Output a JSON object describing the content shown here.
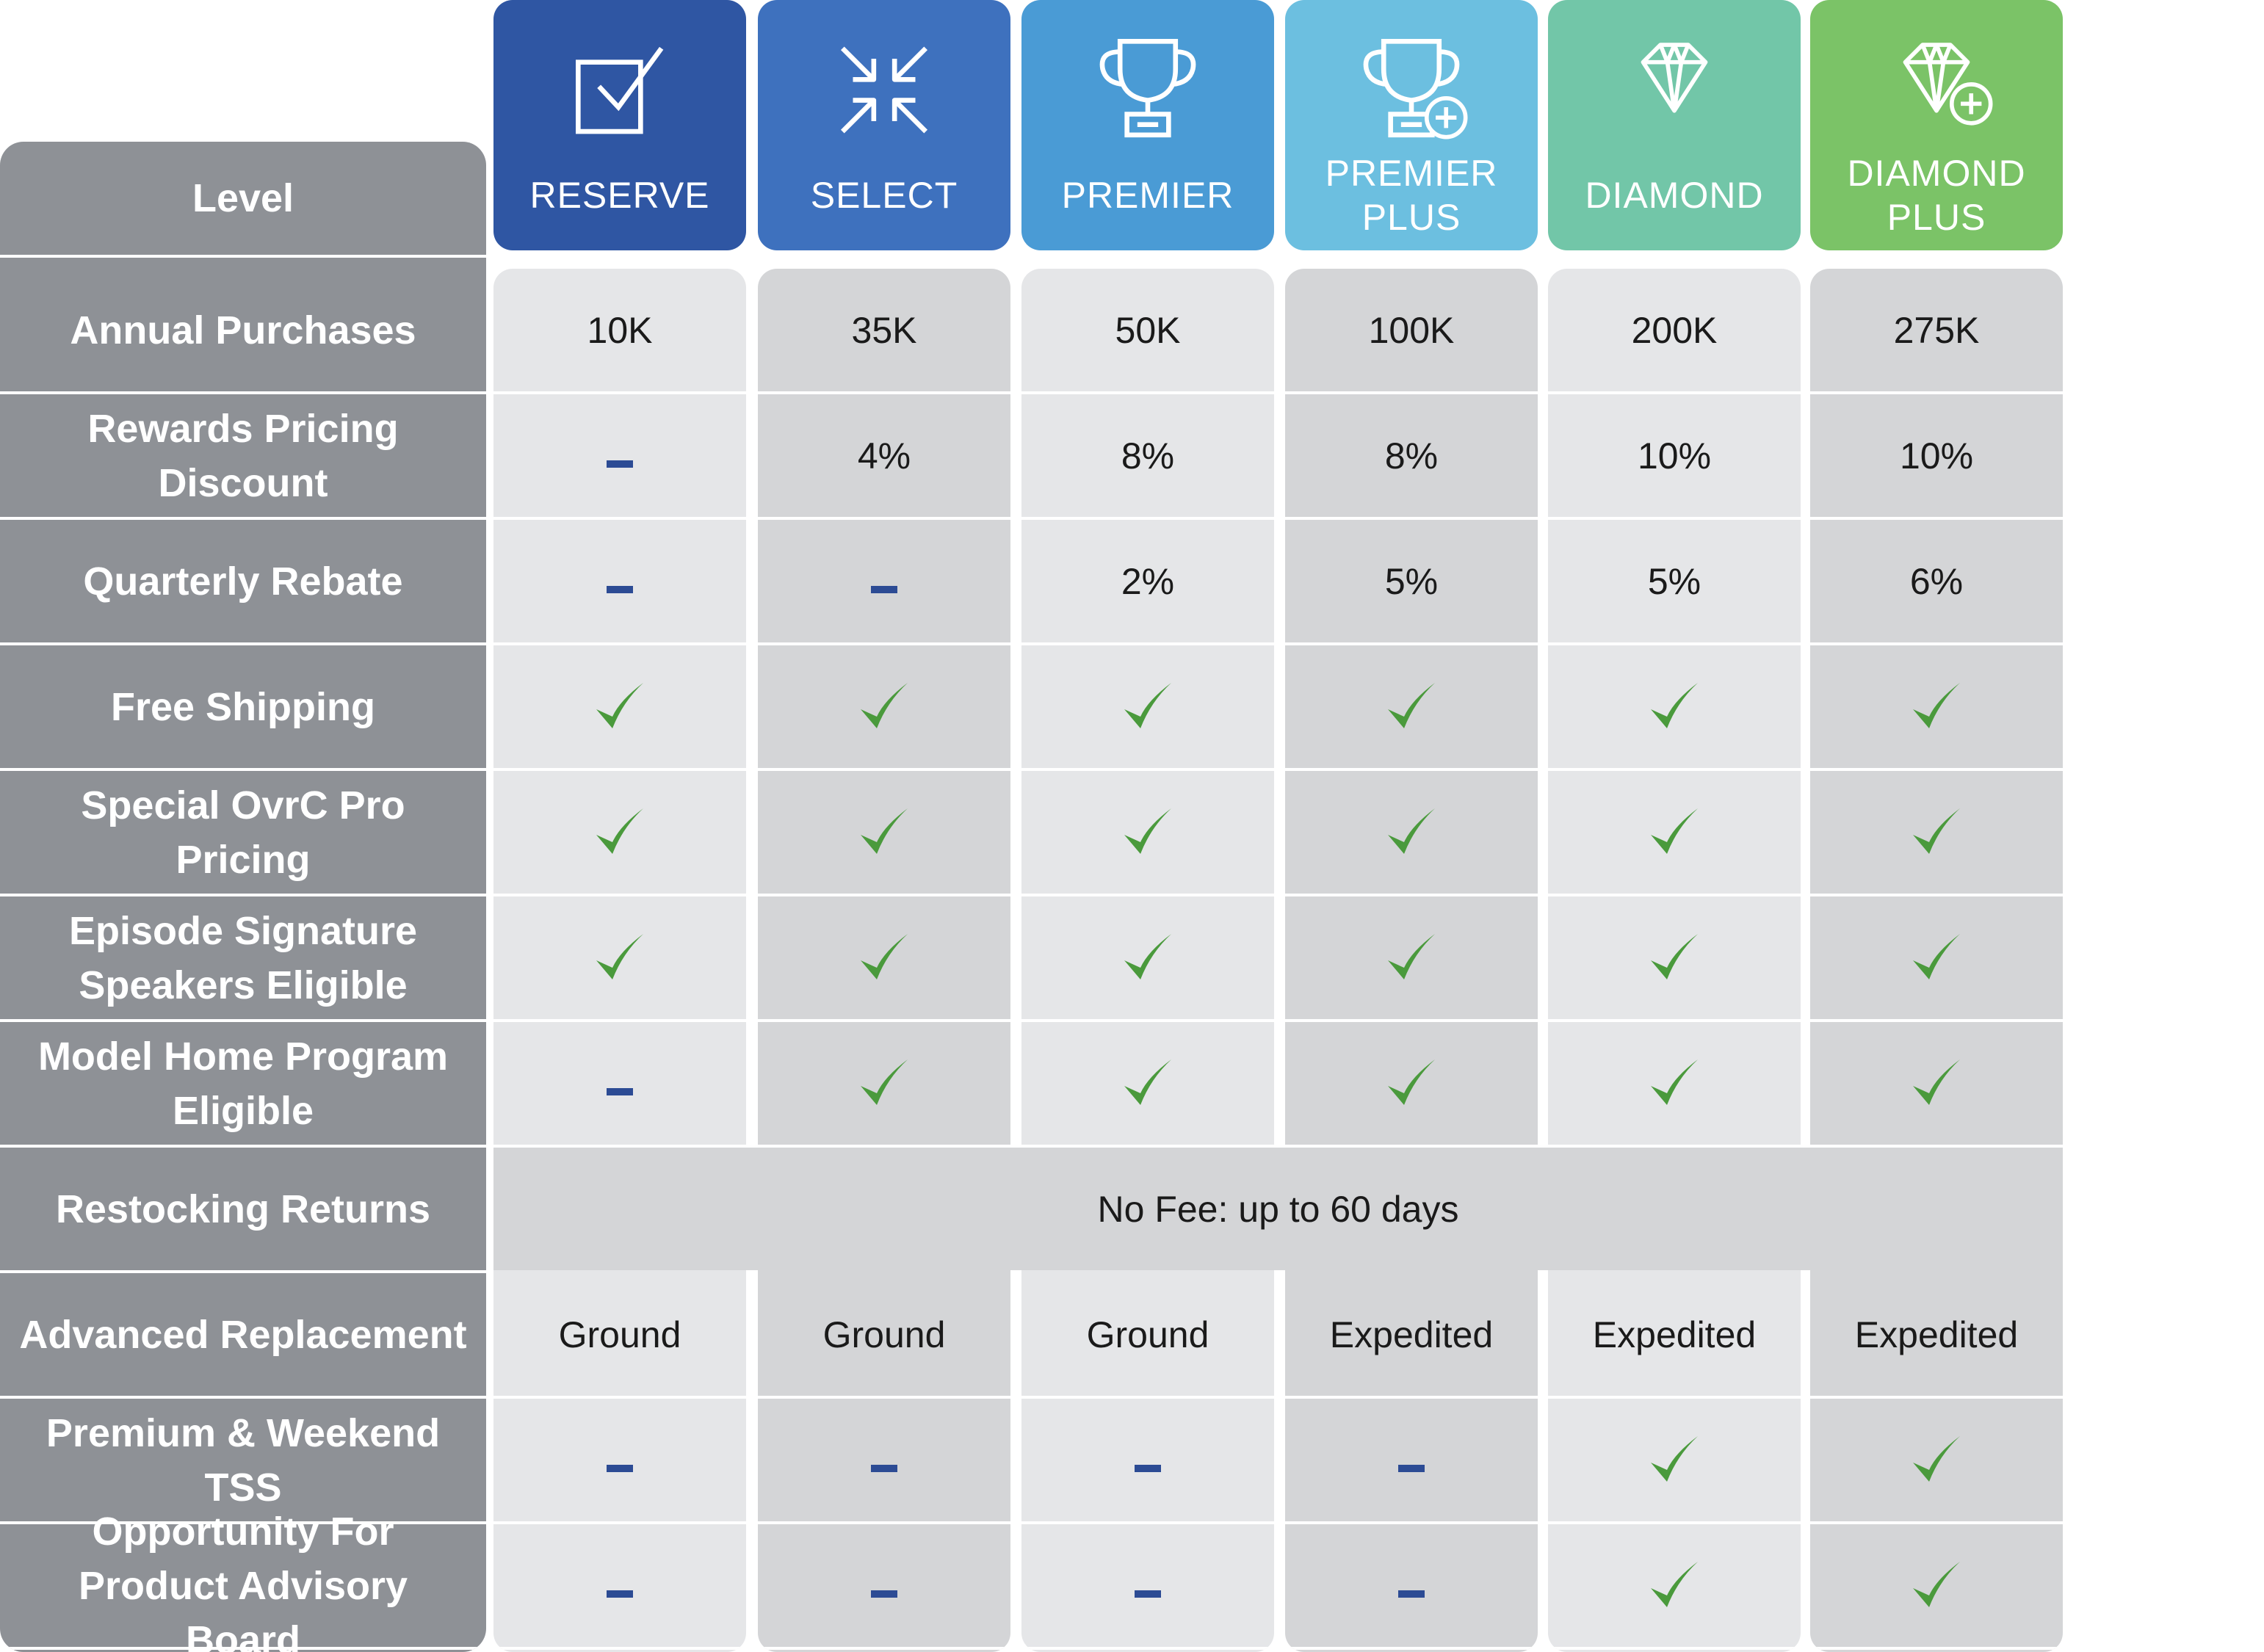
{
  "header_label": "Level",
  "tiers": [
    {
      "name": "RESERVE",
      "color": "#2f56a3",
      "icon": "checkbox-icon",
      "body_color": "#e5e6e8"
    },
    {
      "name": "SELECT",
      "color": "#3e71be",
      "icon": "compress-arrows-icon",
      "body_color": "#d4d5d7"
    },
    {
      "name": "PREMIER",
      "color": "#4a9bd5",
      "icon": "trophy-icon",
      "body_color": "#e5e6e8"
    },
    {
      "name": "PREMIER PLUS",
      "color": "#6cbfe0",
      "icon": "trophy-plus-icon",
      "body_color": "#d4d5d7"
    },
    {
      "name": "DIAMOND",
      "color": "#72c6a8",
      "icon": "diamond-icon",
      "body_color": "#e5e6e8"
    },
    {
      "name": "DIAMOND PLUS",
      "color": "#7bc367",
      "icon": "diamond-plus-icon",
      "body_color": "#d4d5d7"
    }
  ],
  "rows": [
    {
      "label": "Annual Purchases",
      "values": [
        "10K",
        "35K",
        "50K",
        "100K",
        "200K",
        "275K"
      ]
    },
    {
      "label": "Rewards Pricing Discount",
      "values": [
        "–",
        "4%",
        "8%",
        "8%",
        "10%",
        "10%"
      ]
    },
    {
      "label": "Quarterly Rebate",
      "values": [
        "–",
        "–",
        "2%",
        "5%",
        "5%",
        "6%"
      ]
    },
    {
      "label": "Free Shipping",
      "values": [
        "✓",
        "✓",
        "✓",
        "✓",
        "✓",
        "✓"
      ]
    },
    {
      "label": "Special OvrC Pro Pricing",
      "values": [
        "✓",
        "✓",
        "✓",
        "✓",
        "✓",
        "✓"
      ]
    },
    {
      "label": "Episode Signature Speakers Eligible",
      "values": [
        "✓",
        "✓",
        "✓",
        "✓",
        "✓",
        "✓"
      ]
    },
    {
      "label": "Model Home Program Eligible",
      "values": [
        "–",
        "✓",
        "✓",
        "✓",
        "✓",
        "✓"
      ]
    },
    {
      "label": "Restocking Returns",
      "merged": "No Fee: up to 60 days"
    },
    {
      "label": "Advanced Replacement",
      "values": [
        "Ground",
        "Ground",
        "Ground",
        "Expedited",
        "Expedited",
        "Expedited"
      ]
    },
    {
      "label": "Premium & Weekend TSS",
      "values": [
        "–",
        "–",
        "–",
        "–",
        "✓",
        "✓"
      ]
    },
    {
      "label": "Opportunity For Product Advisory Board",
      "values": [
        "–",
        "–",
        "–",
        "–",
        "✓",
        "✓"
      ]
    }
  ],
  "colors": {
    "check": "#4a9a3c",
    "dash": "#2c4b94",
    "label_bg": "#8e9196"
  }
}
